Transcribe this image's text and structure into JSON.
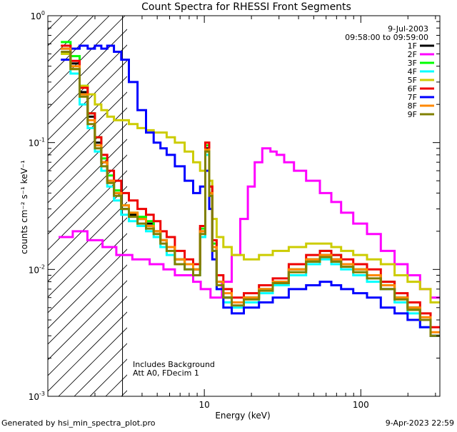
{
  "chart_data": {
    "type": "line",
    "title": "Count Spectra for RHESSI Front Segments",
    "xlabel": "Energy (keV)",
    "ylabel": "counts cm⁻² s⁻¹ keV⁻¹",
    "x_scale": "log",
    "y_scale": "log",
    "xlim": [
      1,
      320
    ],
    "ylim": [
      0.001,
      1.0
    ],
    "x_ticks": [
      {
        "value": 10,
        "label": "10"
      },
      {
        "value": 100,
        "label": "100"
      }
    ],
    "y_ticks": [
      {
        "value": 1.0,
        "base": "10",
        "exp": "0"
      },
      {
        "value": 0.1,
        "base": "10",
        "exp": "-1"
      },
      {
        "value": 0.01,
        "base": "10",
        "exp": "-2"
      },
      {
        "value": 0.001,
        "base": "10",
        "exp": "-3"
      }
    ],
    "date": "9-Jul-2003",
    "time_range": "09:58:00 to 09:59:00",
    "annotations": [
      "Includes Background",
      "Att A0, FDecim 1"
    ],
    "hatched_region_x": [
      1,
      3
    ],
    "series": [
      {
        "name": "1F",
        "color": "#000000",
        "x": [
          1.3,
          1.5,
          1.7,
          1.9,
          2.1,
          2.3,
          2.5,
          2.8,
          3.1,
          3.5,
          4,
          4.5,
          5,
          5.5,
          6,
          7,
          8,
          9,
          9.8,
          10.5,
          11,
          11.5,
          12.5,
          14,
          16,
          20,
          25,
          30,
          40,
          50,
          60,
          70,
          80,
          100,
          120,
          150,
          180,
          220,
          260,
          300
        ],
        "values": [
          0.55,
          0.42,
          0.25,
          0.16,
          0.1,
          0.07,
          0.05,
          0.04,
          0.03,
          0.027,
          0.025,
          0.023,
          0.02,
          0.017,
          0.015,
          0.012,
          0.011,
          0.01,
          0.02,
          0.09,
          0.04,
          0.015,
          0.008,
          0.006,
          0.0055,
          0.006,
          0.007,
          0.008,
          0.01,
          0.012,
          0.013,
          0.012,
          0.011,
          0.01,
          0.009,
          0.007,
          0.006,
          0.005,
          0.004,
          0.003
        ]
      },
      {
        "name": "2F",
        "color": "#ff00ff",
        "x": [
          1.3,
          1.6,
          2,
          2.5,
          3,
          4,
          5,
          6,
          7,
          8,
          9,
          10,
          12,
          14,
          16,
          18,
          20,
          22,
          25,
          28,
          30,
          35,
          40,
          50,
          60,
          70,
          80,
          100,
          120,
          150,
          180,
          220,
          260,
          300
        ],
        "values": [
          0.018,
          0.02,
          0.017,
          0.015,
          0.013,
          0.012,
          0.011,
          0.01,
          0.009,
          0.009,
          0.008,
          0.007,
          0.006,
          0.008,
          0.013,
          0.025,
          0.045,
          0.07,
          0.09,
          0.085,
          0.08,
          0.07,
          0.06,
          0.05,
          0.04,
          0.034,
          0.028,
          0.023,
          0.019,
          0.014,
          0.011,
          0.009,
          0.007,
          0.006
        ]
      },
      {
        "name": "3F",
        "color": "#00ff00",
        "x": [
          1.3,
          1.5,
          1.7,
          1.9,
          2.1,
          2.3,
          2.5,
          2.8,
          3.1,
          3.5,
          4,
          4.5,
          5,
          5.5,
          6,
          7,
          8,
          9,
          9.8,
          10.5,
          11,
          11.5,
          12.5,
          14,
          16,
          20,
          25,
          30,
          40,
          50,
          60,
          70,
          80,
          100,
          120,
          150,
          180,
          220,
          260,
          300
        ],
        "values": [
          0.62,
          0.48,
          0.28,
          0.17,
          0.11,
          0.075,
          0.055,
          0.042,
          0.032,
          0.028,
          0.026,
          0.024,
          0.02,
          0.017,
          0.015,
          0.012,
          0.011,
          0.01,
          0.021,
          0.095,
          0.045,
          0.016,
          0.008,
          0.006,
          0.0055,
          0.006,
          0.007,
          0.008,
          0.01,
          0.012,
          0.014,
          0.013,
          0.011,
          0.01,
          0.009,
          0.008,
          0.006,
          0.005,
          0.004,
          0.003
        ]
      },
      {
        "name": "4F",
        "color": "#00ffff",
        "x": [
          1.3,
          1.5,
          1.7,
          1.9,
          2.1,
          2.3,
          2.5,
          2.8,
          3.1,
          3.5,
          4,
          4.5,
          5,
          5.5,
          6,
          7,
          8,
          9,
          9.8,
          10.5,
          11,
          11.5,
          12.5,
          14,
          16,
          20,
          25,
          30,
          40,
          50,
          60,
          70,
          80,
          100,
          120,
          150,
          180,
          220,
          260,
          300
        ],
        "values": [
          0.5,
          0.35,
          0.2,
          0.13,
          0.085,
          0.06,
          0.045,
          0.035,
          0.027,
          0.024,
          0.022,
          0.02,
          0.018,
          0.015,
          0.013,
          0.011,
          0.01,
          0.009,
          0.018,
          0.08,
          0.038,
          0.014,
          0.007,
          0.0055,
          0.005,
          0.0055,
          0.0065,
          0.0075,
          0.009,
          0.011,
          0.012,
          0.011,
          0.01,
          0.009,
          0.008,
          0.007,
          0.0055,
          0.0045,
          0.0035,
          0.003
        ]
      },
      {
        "name": "5F",
        "color": "#cccc00",
        "x": [
          1.3,
          1.5,
          1.7,
          1.9,
          2.1,
          2.3,
          2.5,
          2.8,
          3.1,
          3.5,
          4,
          4.5,
          5,
          5.5,
          6,
          7,
          8,
          9,
          9.8,
          10.5,
          11,
          11.5,
          12.5,
          14,
          16,
          20,
          25,
          30,
          40,
          50,
          60,
          70,
          80,
          100,
          120,
          150,
          180,
          220,
          260,
          300
        ],
        "values": [
          0.5,
          0.38,
          0.28,
          0.24,
          0.2,
          0.18,
          0.16,
          0.15,
          0.15,
          0.14,
          0.13,
          0.125,
          0.12,
          0.12,
          0.11,
          0.1,
          0.085,
          0.07,
          0.06,
          0.1,
          0.05,
          0.025,
          0.018,
          0.015,
          0.013,
          0.012,
          0.013,
          0.014,
          0.015,
          0.016,
          0.016,
          0.015,
          0.014,
          0.013,
          0.012,
          0.011,
          0.009,
          0.008,
          0.007,
          0.0055
        ]
      },
      {
        "name": "6F",
        "color": "#ee0000",
        "x": [
          1.3,
          1.5,
          1.7,
          1.9,
          2.1,
          2.3,
          2.5,
          2.8,
          3.1,
          3.5,
          4,
          4.5,
          5,
          5.5,
          6,
          7,
          8,
          9,
          9.8,
          10.5,
          11,
          11.5,
          12.5,
          14,
          16,
          20,
          25,
          30,
          40,
          50,
          60,
          70,
          80,
          100,
          120,
          150,
          180,
          220,
          260,
          300
        ],
        "values": [
          0.58,
          0.44,
          0.27,
          0.17,
          0.11,
          0.08,
          0.06,
          0.05,
          0.04,
          0.035,
          0.03,
          0.027,
          0.024,
          0.02,
          0.018,
          0.014,
          0.012,
          0.011,
          0.022,
          0.1,
          0.045,
          0.017,
          0.009,
          0.007,
          0.006,
          0.0065,
          0.0075,
          0.0085,
          0.011,
          0.013,
          0.014,
          0.013,
          0.012,
          0.011,
          0.01,
          0.008,
          0.0065,
          0.0055,
          0.0045,
          0.0035
        ]
      },
      {
        "name": "7F",
        "color": "#0000ff",
        "x": [
          1.3,
          1.5,
          1.7,
          1.9,
          2.1,
          2.3,
          2.5,
          2.8,
          3.1,
          3.5,
          4,
          4.5,
          5,
          5.5,
          6,
          7,
          8,
          9,
          9.8,
          10.5,
          11,
          11.5,
          12.5,
          14,
          16,
          20,
          25,
          30,
          40,
          50,
          60,
          70,
          80,
          100,
          120,
          150,
          180,
          220,
          260,
          300
        ],
        "values": [
          0.45,
          0.55,
          0.58,
          0.55,
          0.58,
          0.55,
          0.58,
          0.52,
          0.45,
          0.3,
          0.18,
          0.12,
          0.1,
          0.09,
          0.08,
          0.065,
          0.05,
          0.04,
          0.045,
          0.06,
          0.03,
          0.012,
          0.007,
          0.005,
          0.0045,
          0.005,
          0.0055,
          0.006,
          0.007,
          0.0075,
          0.008,
          0.0075,
          0.007,
          0.0065,
          0.006,
          0.005,
          0.0045,
          0.004,
          0.0035,
          0.003
        ]
      },
      {
        "name": "8F",
        "color": "#ff8800",
        "x": [
          1.3,
          1.5,
          1.7,
          1.9,
          2.1,
          2.3,
          2.5,
          2.8,
          3.1,
          3.5,
          4,
          4.5,
          5,
          5.5,
          6,
          7,
          8,
          9,
          9.8,
          10.5,
          11,
          11.5,
          12.5,
          14,
          16,
          20,
          25,
          30,
          40,
          50,
          60,
          70,
          80,
          100,
          120,
          150,
          180,
          220,
          260,
          300
        ],
        "values": [
          0.55,
          0.4,
          0.24,
          0.15,
          0.095,
          0.07,
          0.05,
          0.04,
          0.032,
          0.028,
          0.025,
          0.022,
          0.02,
          0.017,
          0.015,
          0.012,
          0.011,
          0.01,
          0.02,
          0.088,
          0.04,
          0.015,
          0.008,
          0.0065,
          0.0055,
          0.006,
          0.007,
          0.008,
          0.01,
          0.012,
          0.013,
          0.012,
          0.011,
          0.01,
          0.009,
          0.0075,
          0.006,
          0.005,
          0.0042,
          0.0032
        ]
      },
      {
        "name": "9F",
        "color": "#808000",
        "x": [
          1.3,
          1.5,
          1.7,
          1.9,
          2.1,
          2.3,
          2.5,
          2.8,
          3.1,
          3.5,
          4,
          4.5,
          5,
          5.5,
          6,
          7,
          8,
          9,
          9.8,
          10.5,
          11,
          11.5,
          12.5,
          14,
          16,
          20,
          25,
          30,
          40,
          50,
          60,
          70,
          80,
          100,
          120,
          150,
          180,
          220,
          260,
          300
        ],
        "values": [
          0.52,
          0.38,
          0.23,
          0.14,
          0.09,
          0.065,
          0.048,
          0.038,
          0.03,
          0.026,
          0.023,
          0.021,
          0.019,
          0.016,
          0.014,
          0.011,
          0.01,
          0.009,
          0.019,
          0.085,
          0.038,
          0.014,
          0.0075,
          0.006,
          0.0052,
          0.0058,
          0.0068,
          0.0078,
          0.0095,
          0.0115,
          0.0125,
          0.0115,
          0.0105,
          0.0095,
          0.0085,
          0.007,
          0.0058,
          0.0048,
          0.004,
          0.003
        ]
      }
    ]
  },
  "footer": {
    "left": "Generated by hsi_min_spectra_plot.pro",
    "right": "9-Apr-2023 22:59"
  }
}
